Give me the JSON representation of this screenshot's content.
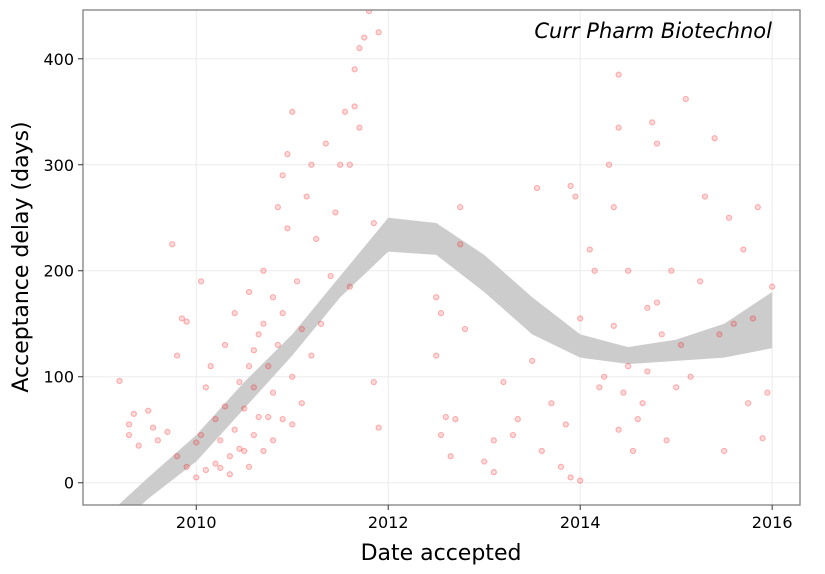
{
  "chart_data": {
    "type": "scatter",
    "annotation": "Curr Pharm Biotechnol",
    "x_label": "Date accepted",
    "y_label": "Acceptance delay (days)",
    "xlim": [
      2008.82,
      2016.29
    ],
    "xticks": [
      2010,
      2012,
      2014,
      2016
    ],
    "ylim": [
      -21,
      446
    ],
    "yticks": [
      0,
      100,
      200,
      300,
      400
    ],
    "grid": true,
    "series": [
      {
        "color": "#ff0000",
        "x": [
          2009.2,
          2009.3,
          2009.35,
          2009.3,
          2009.4,
          2009.5,
          2009.55,
          2009.6,
          2009.7,
          2009.75,
          2009.8,
          2009.85,
          2009.9,
          2009.8,
          2009.9,
          2010.0,
          2010.05,
          2010.0,
          2010.05,
          2010.1,
          2010.1,
          2010.15,
          2010.2,
          2010.2,
          2010.25,
          2010.25,
          2010.3,
          2010.3,
          2010.35,
          2010.35,
          2010.4,
          2010.4,
          2010.45,
          2010.45,
          2010.5,
          2010.5,
          2010.55,
          2010.55,
          2010.55,
          2010.6,
          2010.6,
          2010.6,
          2010.65,
          2010.65,
          2010.7,
          2010.7,
          2010.7,
          2010.75,
          2010.75,
          2010.8,
          2010.8,
          2010.8,
          2010.85,
          2010.85,
          2010.9,
          2010.9,
          2010.9,
          2010.95,
          2010.95,
          2011.0,
          2011.0,
          2011.0,
          2011.05,
          2011.1,
          2011.1,
          2011.15,
          2011.2,
          2011.2,
          2011.25,
          2011.3,
          2011.35,
          2011.4,
          2011.45,
          2011.5,
          2011.55,
          2011.6,
          2011.6,
          2011.65,
          2011.65,
          2011.7,
          2011.7,
          2011.75,
          2011.8,
          2011.9,
          2011.85,
          2011.85,
          2011.9,
          2012.5,
          2012.55,
          2012.5,
          2012.55,
          2012.6,
          2012.7,
          2012.75,
          2012.75,
          2012.8,
          2012.65,
          2013.0,
          2013.1,
          2013.1,
          2013.2,
          2013.3,
          2013.35,
          2013.5,
          2013.55,
          2013.6,
          2013.7,
          2013.8,
          2013.85,
          2013.9,
          2013.95,
          2013.9,
          2014.0,
          2014.0,
          2014.1,
          2014.15,
          2014.2,
          2014.25,
          2014.3,
          2014.35,
          2014.35,
          2014.4,
          2014.4,
          2014.4,
          2014.45,
          2014.5,
          2014.5,
          2014.55,
          2014.6,
          2014.65,
          2014.7,
          2014.7,
          2014.75,
          2014.8,
          2014.8,
          2014.85,
          2014.9,
          2014.95,
          2015.0,
          2015.05,
          2015.1,
          2015.15,
          2015.25,
          2015.3,
          2015.4,
          2015.45,
          2015.5,
          2015.55,
          2015.6,
          2015.7,
          2015.75,
          2015.8,
          2015.85,
          2015.9,
          2015.95,
          2016.0
        ],
        "values": [
          96,
          55,
          65,
          45,
          35,
          68,
          52,
          40,
          48,
          225,
          120,
          155,
          152,
          25,
          15,
          5,
          190,
          38,
          45,
          12,
          90,
          110,
          18,
          60,
          14,
          40,
          130,
          72,
          25,
          8,
          50,
          160,
          95,
          32,
          30,
          70,
          180,
          110,
          15,
          125,
          45,
          90,
          140,
          62,
          150,
          200,
          30,
          62,
          110,
          175,
          85,
          40,
          260,
          130,
          290,
          160,
          60,
          310,
          240,
          350,
          100,
          55,
          190,
          145,
          75,
          270,
          300,
          120,
          230,
          150,
          320,
          195,
          255,
          300,
          350,
          300,
          185,
          355,
          390,
          410,
          335,
          420,
          445,
          425,
          245,
          95,
          52,
          175,
          160,
          120,
          45,
          62,
          60,
          225,
          260,
          145,
          25,
          20,
          10,
          40,
          95,
          45,
          60,
          115,
          278,
          30,
          75,
          15,
          55,
          280,
          270,
          5,
          155,
          2,
          220,
          200,
          90,
          100,
          300,
          148,
          260,
          335,
          385,
          50,
          85,
          200,
          110,
          30,
          60,
          75,
          165,
          105,
          340,
          320,
          170,
          140,
          40,
          200,
          90,
          130,
          362,
          100,
          190,
          270,
          325,
          140,
          30,
          250,
          150,
          220,
          75,
          155,
          260,
          42,
          85,
          185
        ]
      }
    ],
    "band": {
      "color": "#cccccc",
      "x": [
        2009.2,
        2009.5,
        2010,
        2010.5,
        2011,
        2011.5,
        2012,
        2012.5,
        2013,
        2013.5,
        2014,
        2014.5,
        2015,
        2015.5,
        2016
      ],
      "lower": [
        -40,
        -15,
        20,
        70,
        120,
        175,
        218,
        215,
        180,
        140,
        118,
        112,
        115,
        118,
        127
      ],
      "upper": [
        -20,
        5,
        45,
        95,
        140,
        195,
        250,
        245,
        215,
        175,
        140,
        128,
        135,
        150,
        180
      ]
    }
  }
}
